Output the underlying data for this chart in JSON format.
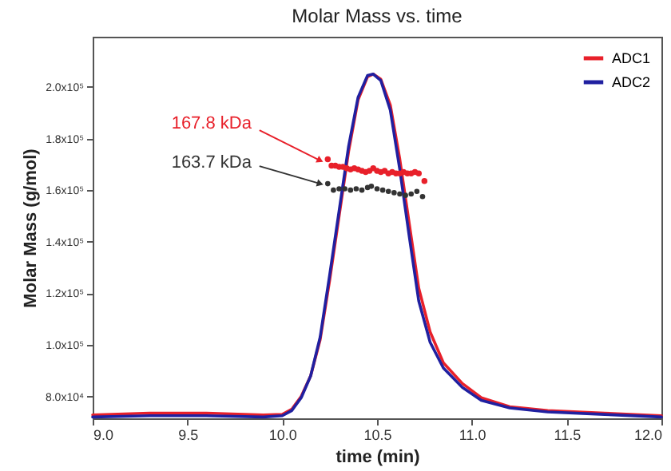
{
  "chart_data": {
    "type": "line",
    "title": "Molar Mass vs. time",
    "xlabel": "time (min)",
    "ylabel": "Molar Mass (g/mol)",
    "xlim": [
      9.0,
      12.0
    ],
    "xticks": [
      {
        "value": 9,
        "label": "9.0"
      },
      9.5,
      {
        "value": 10,
        "label": "10.0"
      },
      10.5,
      {
        "value": 11,
        "label": "11.0"
      },
      11.5,
      {
        "value": 12,
        "label": "12.0"
      }
    ],
    "ylim": [
      71500,
      219500
    ],
    "yticks": [
      {
        "value": 80000,
        "label": "8.0x10⁴"
      },
      {
        "value": 100000,
        "label": "1.0x10⁵"
      },
      {
        "value": 120000,
        "label": "1.2x10⁵"
      },
      {
        "value": 140000,
        "label": "1.4x10⁵"
      },
      {
        "value": 160000,
        "label": "1.6x10⁵"
      },
      {
        "value": 180000,
        "label": "1.8x10⁵"
      },
      {
        "value": 200000,
        "label": "2.0x10⁵"
      }
    ],
    "grid": false,
    "legend": "top right",
    "series": [
      {
        "name": "ADC1",
        "color": "#e8202a",
        "x": [
          9.0,
          9.3,
          9.6,
          9.9,
          10.0,
          10.05,
          10.1,
          10.15,
          10.2,
          10.25,
          10.3,
          10.35,
          10.4,
          10.45,
          10.48,
          10.52,
          10.57,
          10.62,
          10.67,
          10.72,
          10.78,
          10.85,
          10.95,
          11.05,
          11.2,
          11.4,
          11.7,
          12.0
        ],
        "values": [
          72800,
          73500,
          73500,
          72800,
          73000,
          75000,
          80000,
          88000,
          102000,
          125000,
          150000,
          175000,
          195000,
          204000,
          205000,
          203000,
          193000,
          172000,
          147000,
          122000,
          105000,
          93000,
          85000,
          79500,
          76000,
          74500,
          73500,
          72500
        ]
      },
      {
        "name": "ADC2",
        "color": "#2020a0",
        "x": [
          9.0,
          9.3,
          9.6,
          9.9,
          10.0,
          10.05,
          10.1,
          10.15,
          10.2,
          10.25,
          10.3,
          10.35,
          10.4,
          10.45,
          10.48,
          10.52,
          10.57,
          10.62,
          10.67,
          10.72,
          10.78,
          10.85,
          10.95,
          11.05,
          11.2,
          11.4,
          11.7,
          12.0
        ],
        "values": [
          72000,
          72500,
          72500,
          72000,
          72500,
          74500,
          79500,
          88000,
          103000,
          127000,
          152000,
          177000,
          196000,
          204500,
          205000,
          202500,
          191000,
          168000,
          142000,
          117000,
          101000,
          91000,
          83500,
          78500,
          75500,
          74000,
          73000,
          72000
        ]
      },
      {
        "type": "scatter",
        "color": "#e8202a",
        "x": [
          10.24,
          10.26,
          10.28,
          10.3,
          10.32,
          10.34,
          10.36,
          10.38,
          10.4,
          10.42,
          10.44,
          10.46,
          10.48,
          10.5,
          10.52,
          10.54,
          10.56,
          10.58,
          10.6,
          10.62,
          10.64,
          10.66,
          10.68,
          10.7,
          10.72,
          10.75
        ],
        "values": [
          172000,
          169500,
          169500,
          169000,
          169000,
          168500,
          168000,
          168500,
          168000,
          167500,
          167000,
          167500,
          168500,
          167500,
          167000,
          167500,
          166500,
          167000,
          166500,
          166500,
          167000,
          166500,
          166500,
          167000,
          166500,
          163500
        ]
      },
      {
        "type": "scatter",
        "color": "#333333",
        "x": [
          10.24,
          10.27,
          10.3,
          10.33,
          10.36,
          10.39,
          10.42,
          10.45,
          10.47,
          10.5,
          10.53,
          10.56,
          10.59,
          10.62,
          10.65,
          10.68,
          10.71,
          10.74
        ],
        "values": [
          162500,
          160000,
          160500,
          160500,
          160000,
          160500,
          160000,
          161000,
          161500,
          160500,
          160000,
          159500,
          159000,
          158500,
          158000,
          158500,
          159500,
          157500
        ]
      }
    ],
    "annotations": [
      {
        "text": "167.8 kDa",
        "x": 10.2,
        "y": 171500
      },
      {
        "text": "163.7 kDa",
        "x": 10.2,
        "y": 162500
      }
    ]
  }
}
